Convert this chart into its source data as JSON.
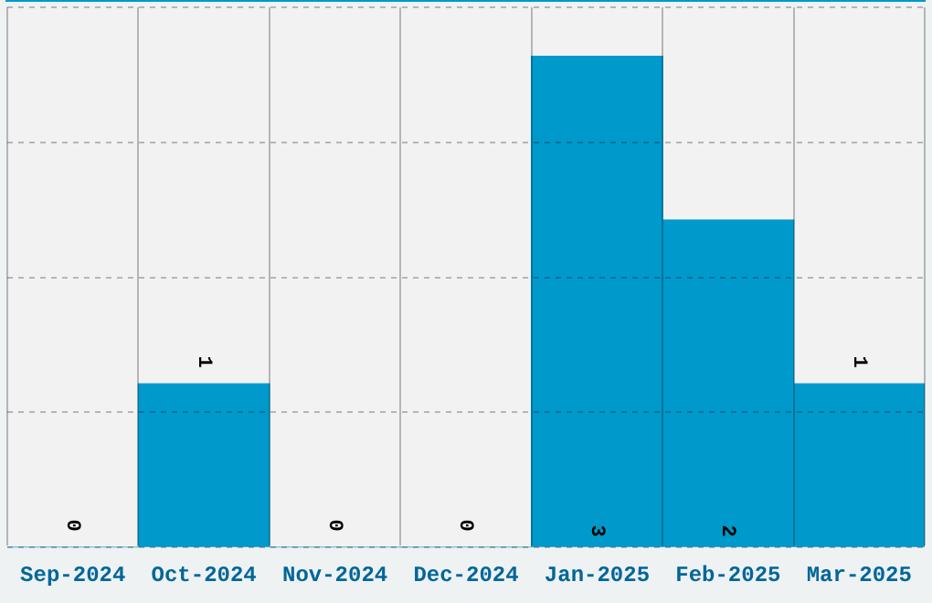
{
  "chart_data": {
    "type": "bar",
    "categories": [
      "Sep-2024",
      "Oct-2024",
      "Nov-2024",
      "Dec-2024",
      "Jan-2025",
      "Feb-2025",
      "Mar-2025"
    ],
    "values": [
      0,
      1,
      0,
      0,
      3,
      2,
      1
    ],
    "color": "#0099cc",
    "ylim": [
      0,
      3.3
    ],
    "yticks": [
      {
        "value": 0,
        "label": null
      },
      {
        "value": 0.825,
        "label": null
      },
      {
        "value": 1.65,
        "label": null
      },
      {
        "value": 2.475,
        "label": null
      },
      {
        "value": 3.3,
        "label": null
      }
    ],
    "grid": true,
    "data_labels": true,
    "tick_labels": "x",
    "legend": false
  }
}
